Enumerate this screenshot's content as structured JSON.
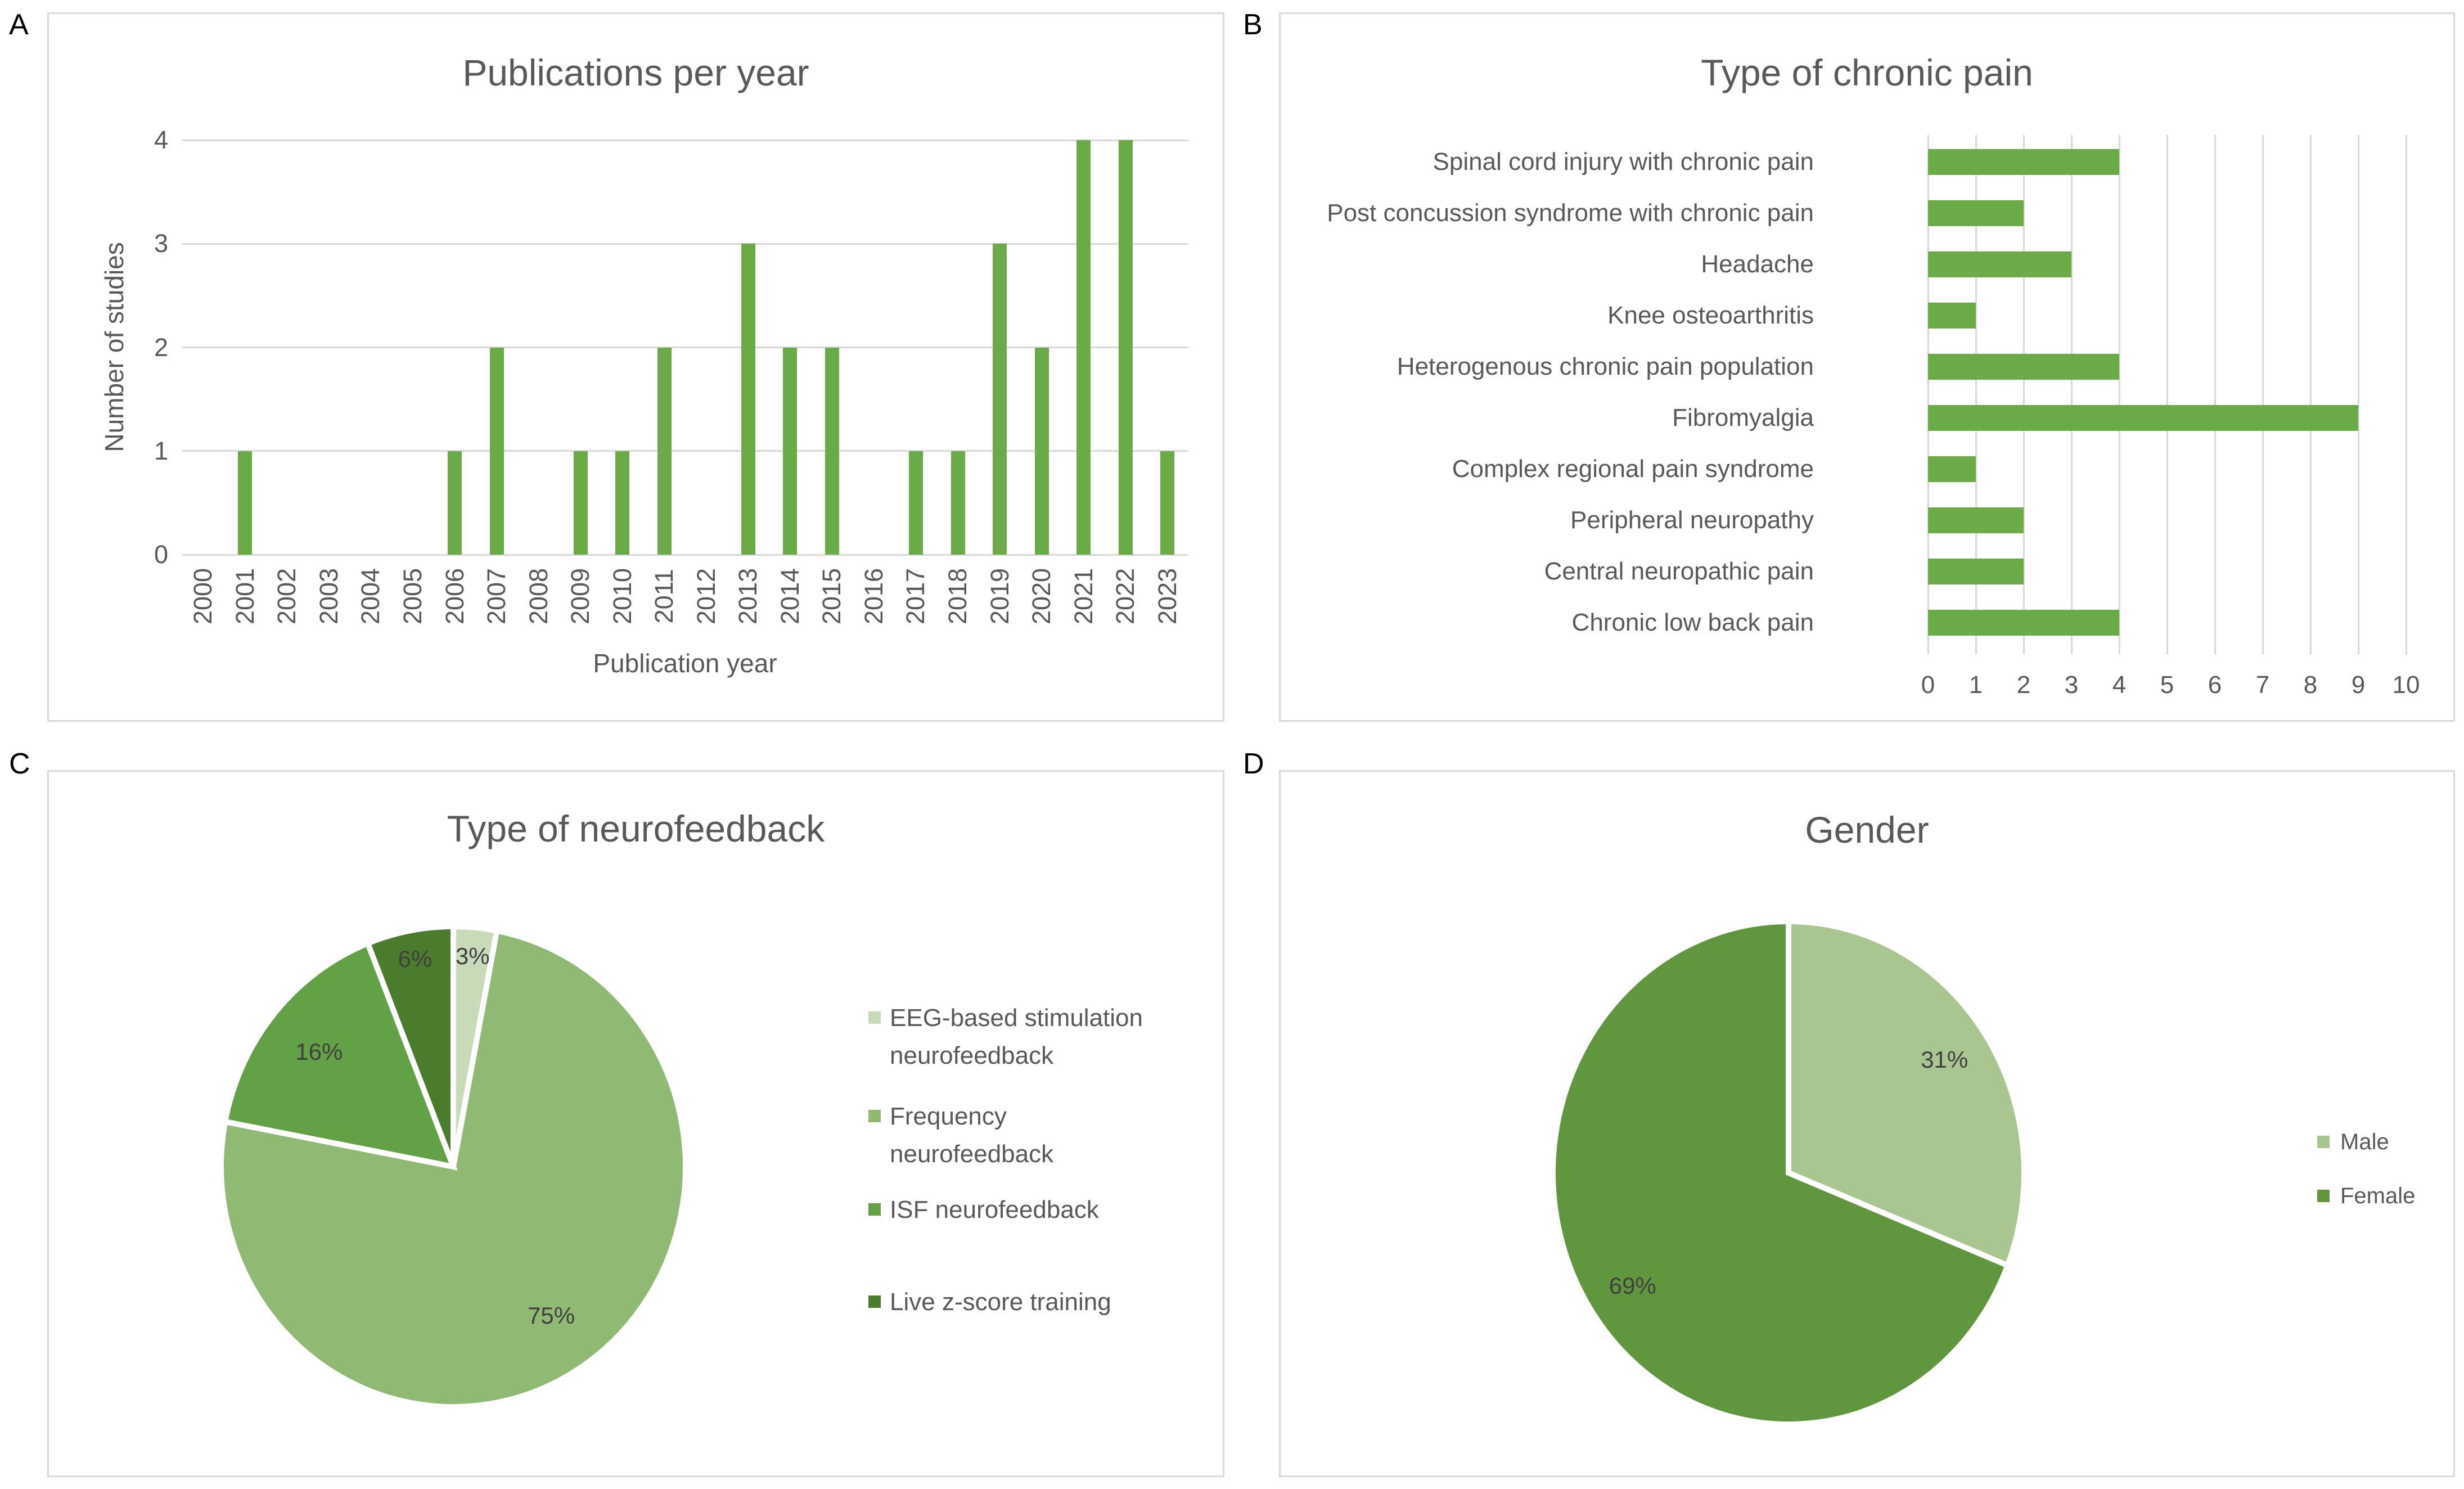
{
  "style": {
    "background": "#ffffff",
    "panel_border_color": "#d9d9d9",
    "grid_color": "#d9d9d9",
    "text_color": "#595959",
    "data_label_color": "#404040",
    "panel_letter_color": "#000000",
    "bar_color": "#6aaa47"
  },
  "chart_data": [
    {
      "panel": "A",
      "type": "bar",
      "title": "Publications per year",
      "xlabel": "Publication year",
      "ylabel": "Number of studies",
      "categories": [
        "2000",
        "2001",
        "2002",
        "2003",
        "2004",
        "2005",
        "2006",
        "2007",
        "2008",
        "2009",
        "2010",
        "2011",
        "2012",
        "2013",
        "2014",
        "2015",
        "2016",
        "2017",
        "2018",
        "2019",
        "2020",
        "2021",
        "2022",
        "2023"
      ],
      "values": [
        0,
        1,
        0,
        0,
        0,
        0,
        1,
        2,
        0,
        1,
        1,
        2,
        0,
        3,
        2,
        2,
        0,
        1,
        1,
        3,
        2,
        4,
        4,
        1
      ],
      "ylim": [
        0,
        4
      ],
      "yticks": [
        0,
        1,
        2,
        3,
        4
      ],
      "grid": "horizontal",
      "bar_color": "#6aaa47",
      "legend": "none"
    },
    {
      "panel": "B",
      "type": "bar_horizontal",
      "title": "Type of chronic pain",
      "xlabel": "",
      "ylabel": "",
      "categories": [
        "Spinal cord injury with chronic pain",
        "Post concussion syndrome with chronic pain",
        "Headache",
        "Knee osteoarthritis",
        "Heterogenous chronic pain population",
        "Fibromyalgia",
        "Complex regional pain syndrome",
        "Peripheral neuropathy",
        "Central neuropathic pain",
        "Chronic low back pain"
      ],
      "values": [
        4,
        2,
        3,
        1,
        4,
        9,
        1,
        2,
        2,
        4
      ],
      "xlim": [
        0,
        10
      ],
      "xticks": [
        0,
        1,
        2,
        3,
        4,
        5,
        6,
        7,
        8,
        9,
        10
      ],
      "grid": "vertical",
      "bar_color": "#6aaa47",
      "legend": "none"
    },
    {
      "panel": "C",
      "type": "pie",
      "title": "Type of neurofeedback",
      "labels": [
        "EEG-based stimulation neurofeedback",
        "Frequency neurofeedback",
        "ISF neurofeedback",
        "Live z-score training"
      ],
      "values": [
        3,
        75,
        16,
        6
      ],
      "unit": "%",
      "data_labels": [
        "3%",
        "75%",
        "16%",
        "6%"
      ],
      "colors": [
        "#c8dbb9",
        "#90ba74",
        "#62a145",
        "#4b7b2d"
      ],
      "start_angle": "top",
      "direction": "clockwise",
      "legend_position": "right"
    },
    {
      "panel": "D",
      "type": "pie",
      "title": "Gender",
      "labels": [
        "Male",
        "Female"
      ],
      "values": [
        31,
        69
      ],
      "unit": "%",
      "data_labels": [
        "31%",
        "69%"
      ],
      "colors": [
        "#a9c690",
        "#60973e"
      ],
      "start_angle": "top",
      "direction": "clockwise",
      "legend_position": "right"
    }
  ]
}
